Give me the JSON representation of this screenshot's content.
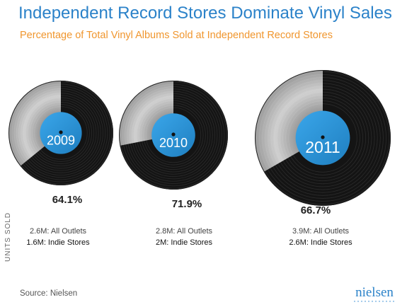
{
  "header": {
    "title": "Independent Record Stores Dominate Vinyl Sales",
    "subtitle": "Percentage of Total Vinyl Albums Sold at Independent Record Stores"
  },
  "axis": {
    "units_label": "UNITS SOLD"
  },
  "footer": {
    "source": "Source: Nielsen",
    "logo_text": "nielsen"
  },
  "colors": {
    "title": "#2b82c9",
    "subtitle": "#f0962e",
    "record_label": "#2a95dc",
    "record_black": "#141414",
    "record_silver": "#a8a8a8"
  },
  "chart_data": {
    "type": "pie",
    "title": "Independent Record Stores Dominate Vinyl Sales",
    "subtitle": "Percentage of Total Vinyl Albums Sold at Independent Record Stores",
    "ylabel": "UNITS SOLD",
    "categories": [
      "2009",
      "2010",
      "2011"
    ],
    "series": [
      {
        "name": "Independent Record Stores",
        "values": [
          64.1,
          71.9,
          66.7
        ],
        "labels": [
          "64.1%",
          "71.9%",
          "66.7%"
        ]
      }
    ],
    "total_units": [
      "2.6M: All Outlets",
      "2.8M: All Outlets",
      "3.9M: All Outlets"
    ],
    "indie_units": [
      "1.6M: Indie Stores",
      "2M: Indie Stores",
      "2.6M: Indie Stores"
    ],
    "total_units_millions": [
      2.6,
      2.8,
      3.9
    ],
    "indie_units_millions": [
      1.6,
      2.0,
      2.6
    ]
  }
}
